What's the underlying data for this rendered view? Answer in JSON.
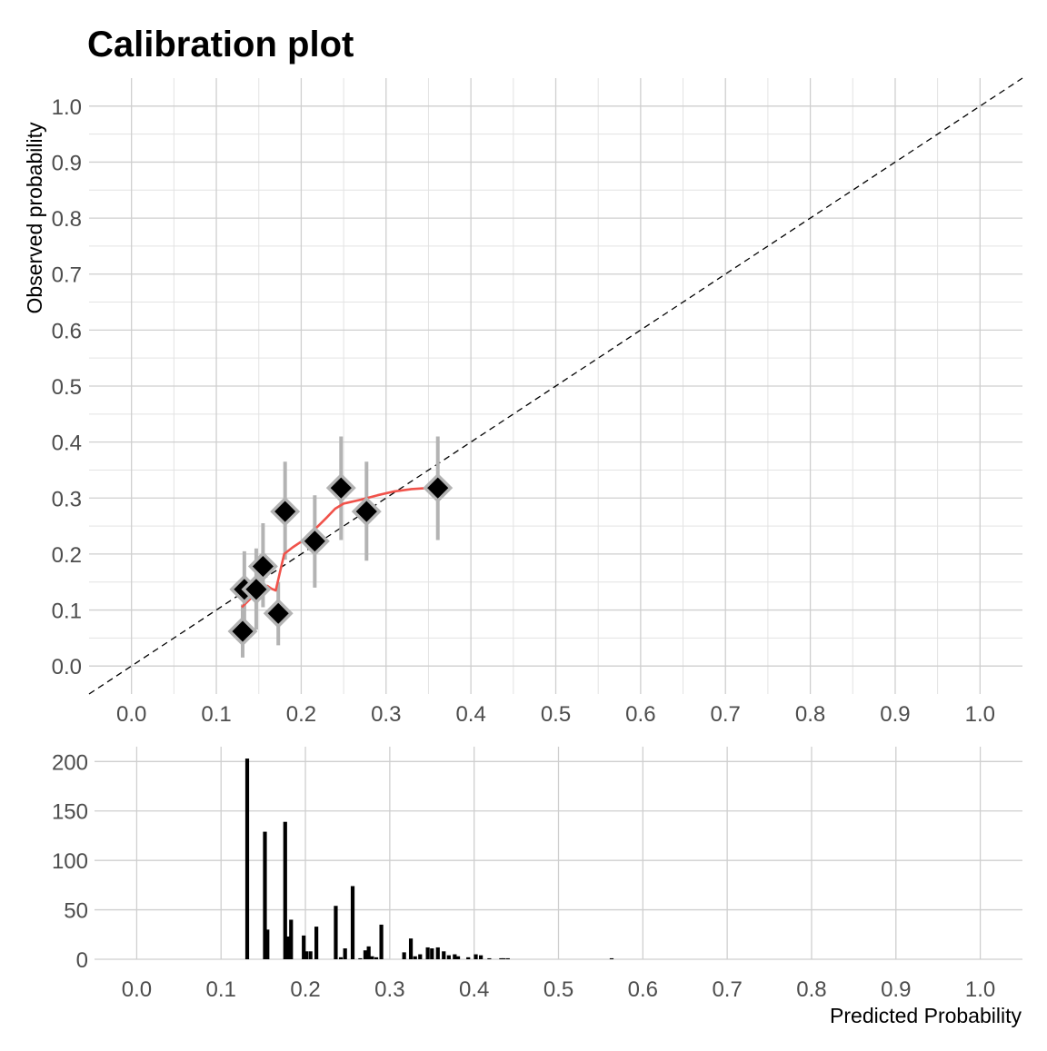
{
  "title": "Calibration plot",
  "colors": {
    "smooth_line": "#f0524a",
    "points": "#000000",
    "point_outline": "#b3b3b3",
    "error_bars": "#b3b3b3",
    "reference_line": "#000000",
    "histogram_bars": "#000000"
  },
  "chart_data": [
    {
      "type": "scatter",
      "ylabel": "Observed probability",
      "xlim": [
        -0.05,
        1.05
      ],
      "ylim": [
        -0.05,
        1.05
      ],
      "x_ticks": [
        "0.0",
        "0.1",
        "0.2",
        "0.3",
        "0.4",
        "0.5",
        "0.6",
        "0.7",
        "0.8",
        "0.9",
        "1.0"
      ],
      "y_ticks": [
        "0.0",
        "0.1",
        "0.2",
        "0.3",
        "0.4",
        "0.5",
        "0.6",
        "0.7",
        "0.8",
        "0.9",
        "1.0"
      ],
      "reference_line": "diagonal y = x (dashed)",
      "points": [
        {
          "x": 0.131,
          "y": 0.062,
          "lower": 0.015,
          "upper": 0.11
        },
        {
          "x": 0.133,
          "y": 0.137,
          "lower": 0.07,
          "upper": 0.205
        },
        {
          "x": 0.147,
          "y": 0.137,
          "lower": 0.065,
          "upper": 0.21
        },
        {
          "x": 0.155,
          "y": 0.178,
          "lower": 0.105,
          "upper": 0.255
        },
        {
          "x": 0.173,
          "y": 0.094,
          "lower": 0.037,
          "upper": 0.15
        },
        {
          "x": 0.181,
          "y": 0.276,
          "lower": 0.19,
          "upper": 0.365
        },
        {
          "x": 0.216,
          "y": 0.223,
          "lower": 0.14,
          "upper": 0.305
        },
        {
          "x": 0.247,
          "y": 0.318,
          "lower": 0.225,
          "upper": 0.41
        },
        {
          "x": 0.277,
          "y": 0.276,
          "lower": 0.188,
          "upper": 0.365
        },
        {
          "x": 0.361,
          "y": 0.318,
          "lower": 0.225,
          "upper": 0.41
        }
      ],
      "smooth": {
        "x": [
          0.13,
          0.14,
          0.15,
          0.16,
          0.165,
          0.17,
          0.175,
          0.18,
          0.19,
          0.2,
          0.21,
          0.22,
          0.23,
          0.24,
          0.25,
          0.27,
          0.29,
          0.31,
          0.33,
          0.35,
          0.36
        ],
        "y": [
          0.105,
          0.12,
          0.135,
          0.143,
          0.138,
          0.135,
          0.168,
          0.2,
          0.212,
          0.222,
          0.235,
          0.25,
          0.265,
          0.281,
          0.29,
          0.297,
          0.305,
          0.312,
          0.316,
          0.318,
          0.318
        ]
      }
    },
    {
      "type": "bar",
      "xlabel": "Predicted Probability",
      "xlim": [
        -0.05,
        1.05
      ],
      "ylim": [
        0,
        215
      ],
      "x_ticks": [
        "0.0",
        "0.1",
        "0.2",
        "0.3",
        "0.4",
        "0.5",
        "0.6",
        "0.7",
        "0.8",
        "0.9",
        "1.0"
      ],
      "y_ticks": [
        "0",
        "50",
        "100",
        "150",
        "200"
      ],
      "bars": [
        {
          "x": 0.131,
          "count": 203
        },
        {
          "x": 0.152,
          "count": 129
        },
        {
          "x": 0.155,
          "count": 30
        },
        {
          "x": 0.176,
          "count": 139
        },
        {
          "x": 0.179,
          "count": 23
        },
        {
          "x": 0.183,
          "count": 40
        },
        {
          "x": 0.198,
          "count": 24
        },
        {
          "x": 0.201,
          "count": 8
        },
        {
          "x": 0.206,
          "count": 8
        },
        {
          "x": 0.213,
          "count": 33
        },
        {
          "x": 0.236,
          "count": 54
        },
        {
          "x": 0.242,
          "count": 2
        },
        {
          "x": 0.247,
          "count": 11
        },
        {
          "x": 0.256,
          "count": 74
        },
        {
          "x": 0.265,
          "count": 1
        },
        {
          "x": 0.271,
          "count": 9
        },
        {
          "x": 0.275,
          "count": 13
        },
        {
          "x": 0.279,
          "count": 3
        },
        {
          "x": 0.284,
          "count": 2
        },
        {
          "x": 0.29,
          "count": 35
        },
        {
          "x": 0.317,
          "count": 7
        },
        {
          "x": 0.325,
          "count": 21
        },
        {
          "x": 0.33,
          "count": 3
        },
        {
          "x": 0.336,
          "count": 5
        },
        {
          "x": 0.345,
          "count": 12
        },
        {
          "x": 0.35,
          "count": 11
        },
        {
          "x": 0.357,
          "count": 12
        },
        {
          "x": 0.364,
          "count": 8
        },
        {
          "x": 0.37,
          "count": 4
        },
        {
          "x": 0.377,
          "count": 5
        },
        {
          "x": 0.381,
          "count": 3
        },
        {
          "x": 0.393,
          "count": 2
        },
        {
          "x": 0.402,
          "count": 5
        },
        {
          "x": 0.408,
          "count": 4
        },
        {
          "x": 0.418,
          "count": 1
        },
        {
          "x": 0.432,
          "count": 1
        },
        {
          "x": 0.435,
          "count": 1
        },
        {
          "x": 0.44,
          "count": 1
        },
        {
          "x": 0.563,
          "count": 1
        }
      ]
    }
  ]
}
